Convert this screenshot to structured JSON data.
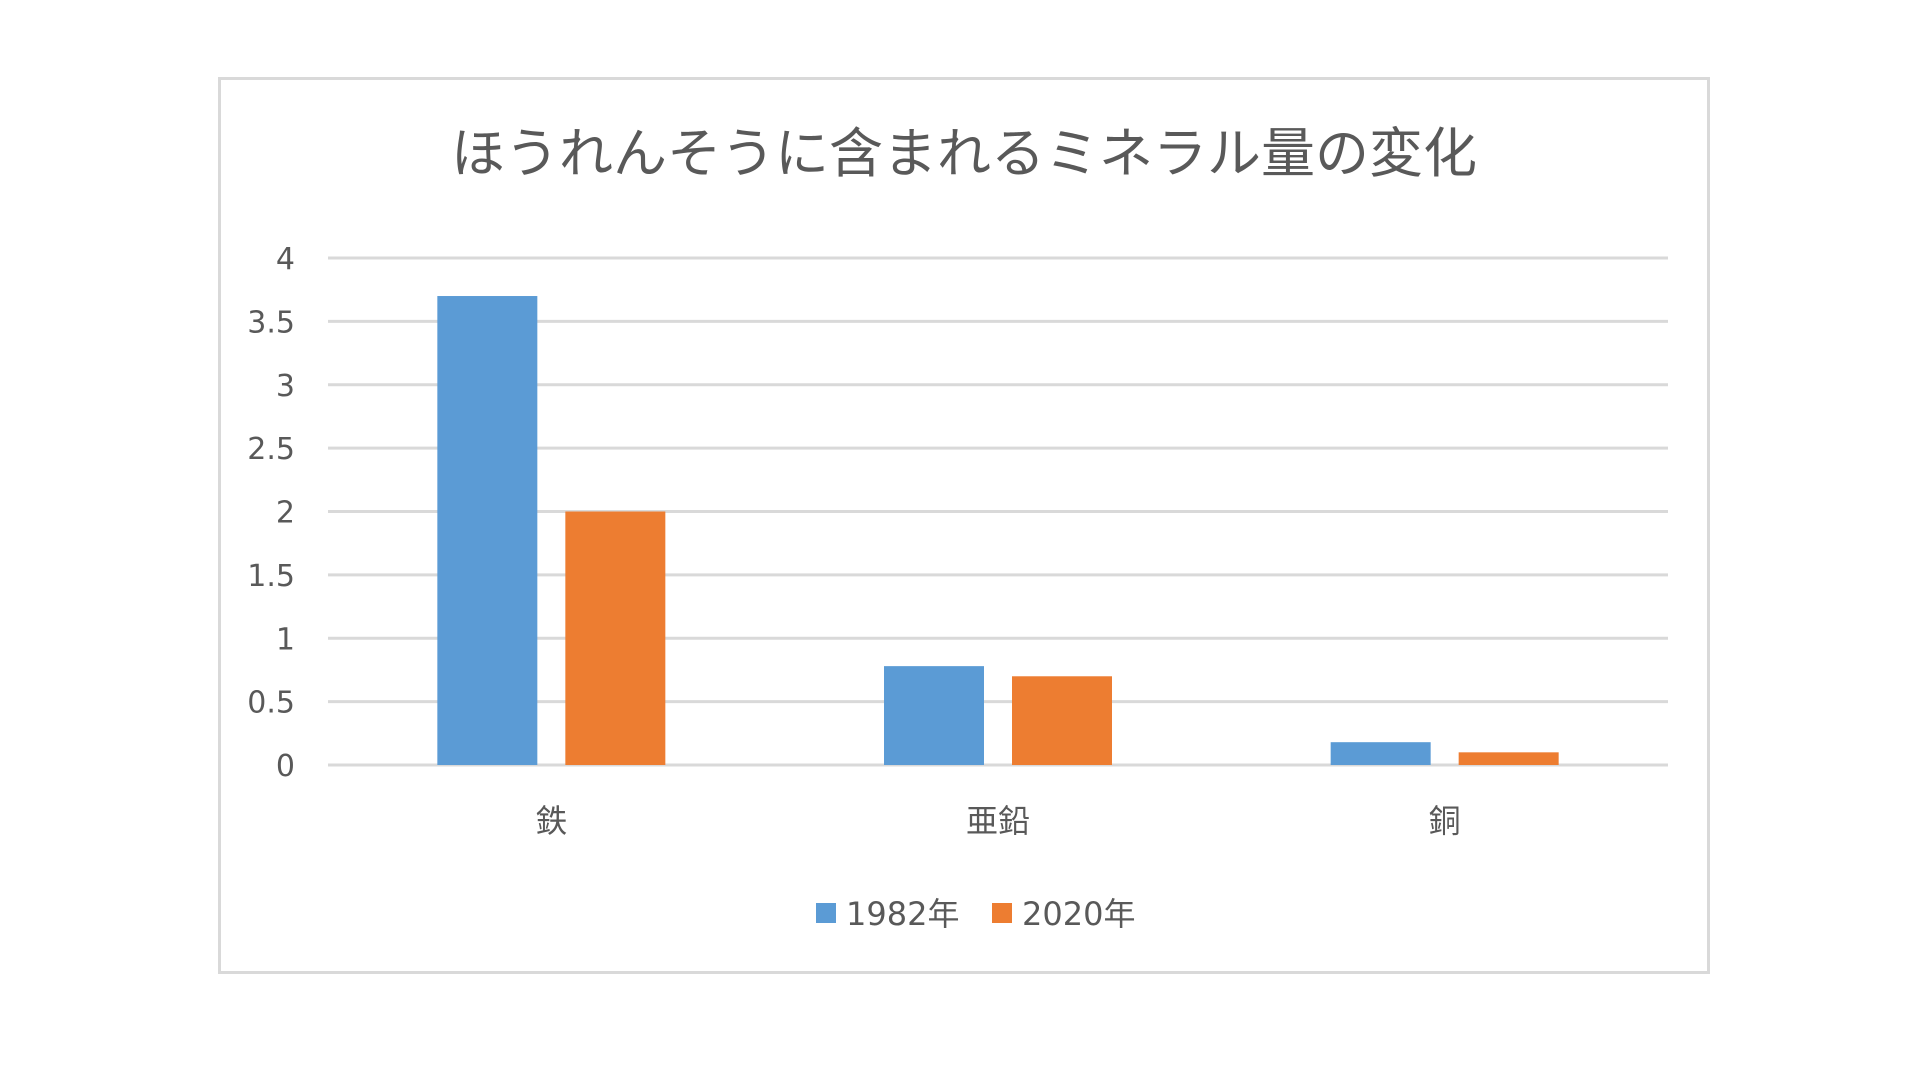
{
  "chart_data": {
    "type": "bar",
    "title": "ほうれんそうに含まれるミネラル量の変化",
    "categories": [
      "鉄",
      "亜鉛",
      "銅"
    ],
    "series": [
      {
        "name": "1982年",
        "values": [
          3.7,
          0.78,
          0.18
        ],
        "color": "#5b9bd5"
      },
      {
        "name": "2020年",
        "values": [
          2.0,
          0.7,
          0.1
        ],
        "color": "#ed7d31"
      }
    ],
    "ylim": [
      0,
      4
    ],
    "yticks": [
      "0",
      "0.5",
      "1",
      "1.5",
      "2",
      "2.5",
      "3",
      "3.5",
      "4"
    ],
    "grid": true,
    "legend": "bottom-center",
    "gridline_color": "#d9d9d9"
  }
}
